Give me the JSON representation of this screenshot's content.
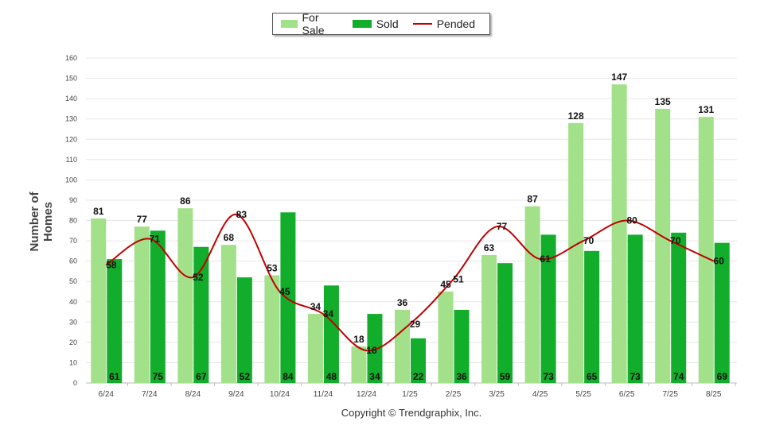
{
  "chart_data": {
    "type": "bar",
    "categories": [
      "6/24",
      "7/24",
      "8/24",
      "9/24",
      "10/24",
      "11/24",
      "12/24",
      "1/25",
      "2/25",
      "3/25",
      "4/25",
      "5/25",
      "6/25",
      "7/25",
      "8/25"
    ],
    "series": [
      {
        "name": "For Sale",
        "type": "bar",
        "color": "#a2e08a",
        "values": [
          81,
          77,
          86,
          68,
          53,
          34,
          18,
          36,
          45,
          63,
          87,
          128,
          147,
          135,
          131
        ]
      },
      {
        "name": "Sold",
        "type": "bar",
        "color": "#12ad2b",
        "values": [
          61,
          75,
          67,
          52,
          84,
          48,
          34,
          22,
          36,
          59,
          73,
          65,
          73,
          74,
          69
        ]
      },
      {
        "name": "Pended",
        "type": "line",
        "color": "#c00000",
        "values": [
          58,
          71,
          52,
          83,
          45,
          34,
          16,
          29,
          51,
          77,
          61,
          70,
          80,
          70,
          60
        ]
      }
    ],
    "ylabel": "Number of Homes",
    "ylim": [
      0,
      160
    ],
    "yticks": [
      0,
      10,
      20,
      30,
      40,
      50,
      60,
      70,
      80,
      90,
      100,
      110,
      120,
      130,
      140,
      150,
      160
    ],
    "grid": true,
    "legend_position": "top-center"
  },
  "legend": {
    "for_sale": "For Sale",
    "sold": "Sold",
    "pended": "Pended"
  },
  "footer": {
    "copyright": "Copyright © Trendgraphix, Inc."
  }
}
